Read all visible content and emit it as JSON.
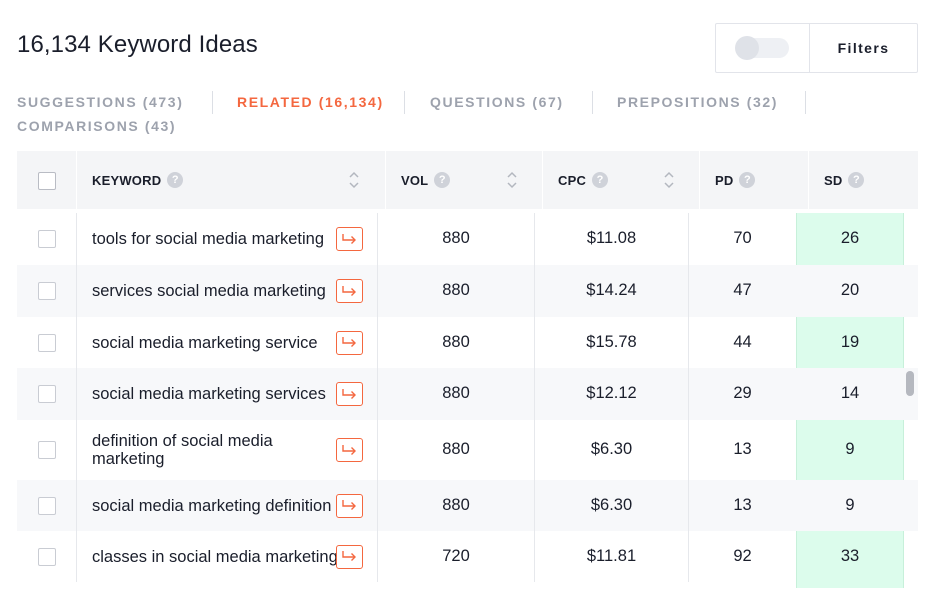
{
  "header": {
    "title": "16,134 Keyword Ideas"
  },
  "filters": {
    "label": "Filters"
  },
  "tabs": [
    {
      "label": "SUGGESTIONS (473)",
      "active": false
    },
    {
      "label": "RELATED (16,134)",
      "active": true
    },
    {
      "label": "QUESTIONS (67)",
      "active": false
    },
    {
      "label": "PREPOSITIONS (32)",
      "active": false
    },
    {
      "label": "COMPARISONS (43)",
      "active": false
    }
  ],
  "table": {
    "columns": {
      "keyword": "KEYWORD",
      "vol": "VOL",
      "cpc": "CPC",
      "pd": "PD",
      "sd": "SD"
    },
    "help_glyph": "?",
    "rows": [
      {
        "keyword": "tools for social media marketing",
        "vol": "880",
        "cpc": "$11.08",
        "pd": "70",
        "sd": "26"
      },
      {
        "keyword": "services social media marketing",
        "vol": "880",
        "cpc": "$14.24",
        "pd": "47",
        "sd": "20"
      },
      {
        "keyword": "social media marketing service",
        "vol": "880",
        "cpc": "$15.78",
        "pd": "44",
        "sd": "19"
      },
      {
        "keyword": "social media marketing services",
        "vol": "880",
        "cpc": "$12.12",
        "pd": "29",
        "sd": "14"
      },
      {
        "keyword": "definition of social media marketing",
        "vol": "880",
        "cpc": "$6.30",
        "pd": "13",
        "sd": "9"
      },
      {
        "keyword": "social media marketing definition",
        "vol": "880",
        "cpc": "$6.30",
        "pd": "13",
        "sd": "9"
      },
      {
        "keyword": "classes in social media marketing",
        "vol": "720",
        "cpc": "$11.81",
        "pd": "92",
        "sd": "33"
      }
    ]
  },
  "colors": {
    "accent": "#f4673f",
    "sd_highlight": "#dcfcec"
  },
  "icons": {
    "sort": "sort-arrows-icon",
    "help": "help-circle-icon",
    "keyword_action": "arrow-turn-right-icon"
  }
}
